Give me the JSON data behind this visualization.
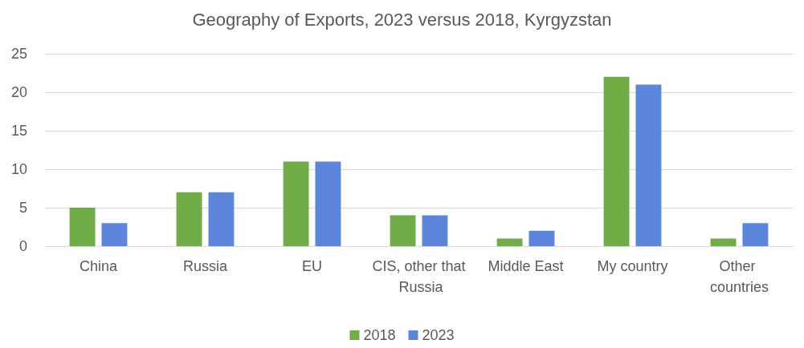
{
  "chart_data": {
    "type": "bar",
    "title": "Geography of Exports, 2023 versus 2018, Kyrgyzstan",
    "categories": [
      "China",
      "Russia",
      "EU",
      "CIS, other that Russia",
      "Middle East",
      "My country",
      "Other countries"
    ],
    "series": [
      {
        "name": "2018",
        "color": "#70ad47",
        "values": [
          5,
          7,
          11,
          4,
          1,
          22,
          1
        ]
      },
      {
        "name": "2023",
        "color": "#5b86db",
        "values": [
          3,
          7,
          11,
          4,
          2,
          21,
          3
        ]
      }
    ],
    "ylim": [
      0,
      25
    ],
    "yticks": [
      0,
      5,
      10,
      15,
      20,
      25
    ],
    "grid": "y",
    "legend": "bottom"
  }
}
